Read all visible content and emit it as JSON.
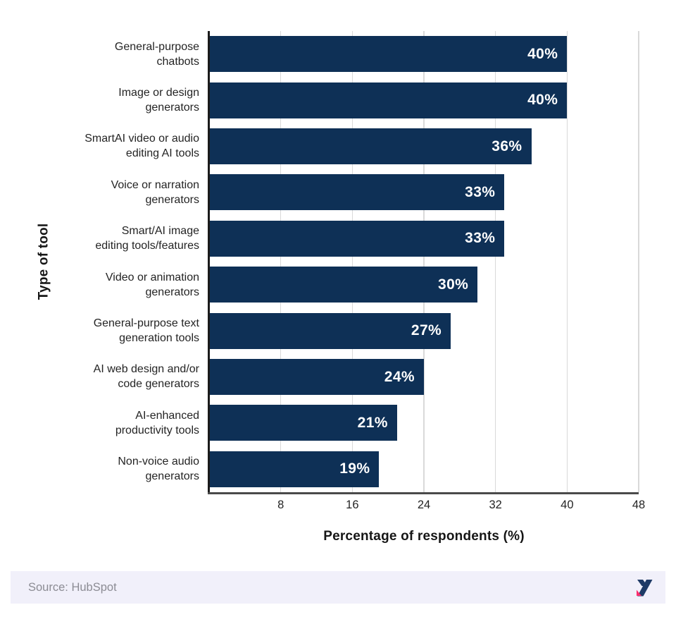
{
  "chart_data": {
    "type": "bar",
    "orientation": "horizontal",
    "categories": [
      "General-purpose\nchatbots",
      "Image or design\ngenerators",
      "SmartAI video or audio\nediting AI tools",
      "Voice or narration\ngenerators",
      "Smart/AI image\nediting tools/features",
      "Video or animation\ngenerators",
      "General-purpose text\ngeneration tools",
      "AI web design and/or\ncode generators",
      "AI-enhanced\nproductivity tools",
      "Non-voice audio\ngenerators"
    ],
    "values": [
      40,
      40,
      36,
      33,
      33,
      30,
      27,
      24,
      21,
      19
    ],
    "value_labels": [
      "40%",
      "40%",
      "36%",
      "33%",
      "33%",
      "30%",
      "27%",
      "24%",
      "21%",
      "19%"
    ],
    "xlabel": "Percentage of respondents (%)",
    "ylabel": "Type of tool",
    "xlim": [
      0,
      48
    ],
    "x_ticks": [
      8,
      16,
      24,
      32,
      40,
      48
    ],
    "grid": "vertical",
    "legend": "none"
  },
  "footer": {
    "source_label": "Source: HubSpot",
    "logo": "zebracat-logo"
  },
  "colors": {
    "bar": "#0E3056",
    "value_text": "#FFFFFF",
    "gridline": "#D9D9D9",
    "axis_y": "#1B1B1B",
    "axis_x": "#4A4A4A",
    "footer_bg": "#F1F0FA",
    "footer_text": "#8C8C94",
    "logo_navy": "#1E3A66",
    "logo_pink": "#FA2E6E"
  }
}
